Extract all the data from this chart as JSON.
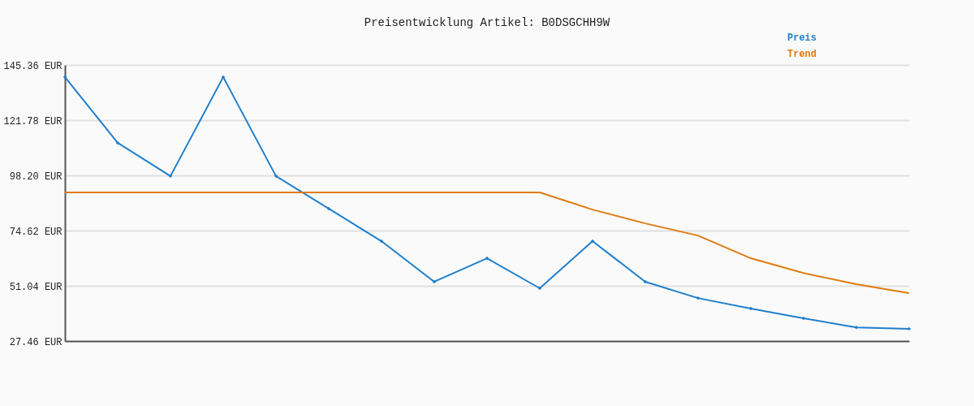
{
  "chart_data": {
    "type": "line",
    "title": "Preisentwicklung Artikel: B0DSGCHH9W",
    "categories": [
      null,
      null,
      null,
      null,
      null,
      null,
      null,
      null,
      null,
      null,
      null,
      null,
      null,
      null,
      null,
      null,
      null
    ],
    "series": [
      {
        "name": "Preis",
        "color": "#1f7fcc",
        "marker": "diamond",
        "values": [
          140.2,
          112.1,
          97.9,
          140.2,
          97.9,
          84.0,
          70.1,
          52.8,
          62.8,
          50.0,
          70.1,
          52.8,
          45.8,
          41.3,
          37.2,
          33.3,
          32.7
        ]
      },
      {
        "name": "Trend",
        "color": "#e07b10",
        "marker": "none",
        "values": [
          90.9,
          90.9,
          90.9,
          90.9,
          90.9,
          90.9,
          90.9,
          90.9,
          90.9,
          90.9,
          83.6,
          77.7,
          72.5,
          62.8,
          56.5,
          51.7,
          47.9
        ]
      }
    ],
    "ylim": [
      27.46,
      145.36
    ],
    "yticks": [
      {
        "value": 27.46,
        "label": "27.46 EUR"
      },
      {
        "value": 51.04,
        "label": "51.04 EUR"
      },
      {
        "value": 74.62,
        "label": "74.62 EUR"
      },
      {
        "value": 98.2,
        "label": "98.20 EUR"
      },
      {
        "value": 121.78,
        "label": "121.78 EUR"
      },
      {
        "value": 145.36,
        "label": "145.36 EUR"
      }
    ],
    "grid": "y",
    "legend": "top right",
    "line_style": "solid"
  }
}
